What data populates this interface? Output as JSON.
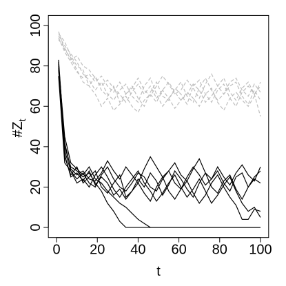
{
  "chart_data": {
    "type": "line",
    "xlabel": "t",
    "ylabel": "#Z",
    "ylabel_subscript": "t",
    "x": [
      1,
      4,
      7,
      10,
      13,
      16,
      19,
      22,
      25,
      28,
      31,
      34,
      37,
      40,
      43,
      46,
      49,
      52,
      55,
      58,
      61,
      64,
      67,
      70,
      73,
      76,
      79,
      82,
      85,
      88,
      91,
      94,
      97,
      100
    ],
    "xlim": [
      -4,
      104
    ],
    "ylim": [
      -5,
      105
    ],
    "xticks": [
      0,
      20,
      40,
      60,
      80,
      100
    ],
    "yticks": [
      0,
      20,
      40,
      60,
      80,
      100
    ],
    "grid": false,
    "series": [
      {
        "color": "#bebebe",
        "linestyle": "dashed",
        "values": [
          97,
          88,
          84,
          78,
          72,
          70,
          75,
          68,
          65,
          70,
          62,
          66,
          70,
          64,
          60,
          67,
          72,
          65,
          63,
          69,
          66,
          61,
          70,
          73,
          66,
          62,
          68,
          71,
          64,
          60,
          67,
          70,
          66,
          55
        ]
      },
      {
        "color": "#bebebe",
        "linestyle": "dashed",
        "values": [
          95,
          90,
          86,
          82,
          76,
          73,
          68,
          72,
          66,
          63,
          68,
          71,
          65,
          62,
          70,
          74,
          66,
          60,
          64,
          68,
          72,
          65,
          62,
          69,
          74,
          68,
          63,
          66,
          70,
          72,
          65,
          61,
          68,
          63
        ]
      },
      {
        "color": "#bebebe",
        "linestyle": "dashed",
        "values": [
          96,
          92,
          85,
          80,
          78,
          70,
          66,
          60,
          64,
          58,
          61,
          65,
          60,
          57,
          63,
          66,
          62,
          68,
          64,
          59,
          63,
          67,
          64,
          60,
          66,
          69,
          62,
          58,
          64,
          67,
          63,
          60,
          65,
          72
        ]
      },
      {
        "color": "#bebebe",
        "linestyle": "dashed",
        "values": [
          94,
          87,
          82,
          77,
          74,
          76,
          72,
          75,
          70,
          67,
          72,
          66,
          69,
          74,
          68,
          65,
          70,
          75,
          71,
          66,
          68,
          73,
          69,
          64,
          71,
          76,
          70,
          66,
          72,
          74,
          68,
          65,
          71,
          67
        ]
      },
      {
        "color": "#bebebe",
        "linestyle": "dashed",
        "values": [
          93,
          89,
          83,
          85,
          80,
          78,
          74,
          70,
          73,
          69,
          66,
          62,
          67,
          71,
          66,
          70,
          64,
          68,
          72,
          67,
          63,
          66,
          71,
          68,
          62,
          65,
          70,
          74,
          67,
          63,
          69,
          72,
          66,
          70
        ]
      },
      {
        "color": "#000000",
        "linestyle": "solid",
        "values": [
          83,
          40,
          30,
          28,
          25,
          27,
          22,
          18,
          12,
          8,
          3,
          0,
          0,
          0,
          0,
          0,
          0,
          0,
          0,
          0,
          0,
          0,
          0,
          0,
          0,
          0,
          0,
          0,
          0,
          0,
          0,
          0,
          0,
          0
        ]
      },
      {
        "color": "#000000",
        "linestyle": "solid",
        "values": [
          80,
          45,
          32,
          29,
          26,
          30,
          24,
          22,
          18,
          15,
          12,
          10,
          7,
          4,
          2,
          0,
          0,
          0,
          0,
          0,
          0,
          0,
          0,
          0,
          0,
          0,
          0,
          0,
          0,
          0,
          0,
          0,
          0,
          0
        ]
      },
      {
        "color": "#000000",
        "linestyle": "solid",
        "values": [
          78,
          38,
          28,
          24,
          27,
          22,
          20,
          26,
          30,
          24,
          20,
          18,
          22,
          27,
          25,
          20,
          18,
          24,
          28,
          22,
          19,
          25,
          30,
          26,
          21,
          24,
          28,
          22,
          18,
          25,
          27,
          20,
          24,
          22
        ]
      },
      {
        "color": "#000000",
        "linestyle": "solid",
        "values": [
          82,
          35,
          26,
          30,
          22,
          25,
          28,
          20,
          17,
          22,
          26,
          15,
          18,
          24,
          20,
          27,
          23,
          16,
          21,
          28,
          24,
          19,
          15,
          22,
          27,
          20,
          17,
          23,
          26,
          19,
          14,
          20,
          25,
          28
        ]
      },
      {
        "color": "#000000",
        "linestyle": "solid",
        "values": [
          75,
          32,
          28,
          22,
          24,
          20,
          26,
          30,
          25,
          19,
          15,
          20,
          24,
          28,
          22,
          18,
          13,
          17,
          22,
          26,
          20,
          15,
          19,
          24,
          18,
          12,
          16,
          21,
          25,
          18,
          12,
          8,
          10,
          5
        ]
      },
      {
        "color": "#000000",
        "linestyle": "solid",
        "values": [
          79,
          36,
          25,
          27,
          23,
          28,
          21,
          25,
          22,
          16,
          19,
          14,
          18,
          22,
          17,
          13,
          20,
          25,
          18,
          14,
          19,
          23,
          17,
          12,
          16,
          22,
          26,
          20,
          15,
          11,
          4,
          4,
          9,
          8
        ]
      },
      {
        "color": "#000000",
        "linestyle": "solid",
        "values": [
          81,
          42,
          29,
          26,
          28,
          24,
          23,
          27,
          33,
          28,
          24,
          30,
          26,
          22,
          29,
          35,
          30,
          25,
          28,
          32,
          26,
          23,
          29,
          34,
          27,
          24,
          30,
          25,
          21,
          27,
          31,
          26,
          23,
          30
        ]
      }
    ]
  }
}
